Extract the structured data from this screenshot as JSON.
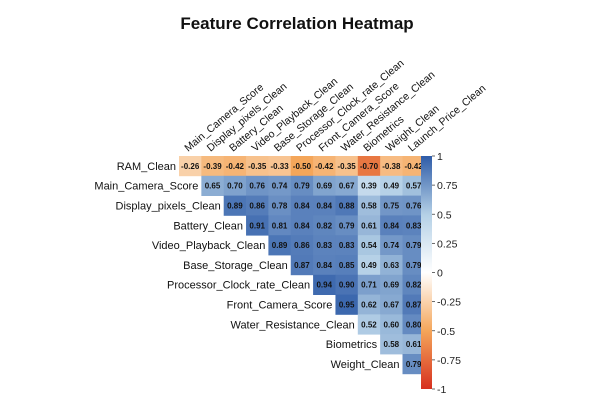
{
  "chart_data": {
    "type": "heatmap",
    "title": "Feature Correlation Heatmap",
    "shape": "upper-triangle",
    "rows": [
      "RAM_Clean",
      "Main_Camera_Score",
      "Display_pixels_Clean",
      "Battery_Clean",
      "Video_Playback_Clean",
      "Base_Storage_Clean",
      "Processor_Clock_rate_Clean",
      "Front_Camera_Score",
      "Water_Resistance_Clean",
      "Biometrics",
      "Weight_Clean"
    ],
    "columns": [
      "Main_Camera_Score",
      "Display_pixels_Clean",
      "Battery_Clean",
      "Video_Playback_Clean",
      "Base_Storage_Clean",
      "Processor_Clock_rate_Clean",
      "Front_Camera_Score",
      "Water_Resistance_Clean",
      "Biometrics",
      "Weight_Clean",
      "Launch_Price_Clean"
    ],
    "values": [
      [
        -0.26,
        -0.39,
        -0.42,
        -0.35,
        -0.33,
        -0.5,
        -0.42,
        -0.35,
        -0.7,
        -0.38,
        -0.42
      ],
      [
        0.65,
        0.7,
        0.76,
        0.74,
        0.79,
        0.69,
        0.67,
        0.39,
        0.49,
        0.57
      ],
      [
        0.89,
        0.86,
        0.78,
        0.84,
        0.84,
        0.88,
        0.58,
        0.75,
        0.76
      ],
      [
        0.91,
        0.81,
        0.84,
        0.82,
        0.79,
        0.61,
        0.84,
        0.83
      ],
      [
        0.89,
        0.86,
        0.83,
        0.83,
        0.54,
        0.74,
        0.79
      ],
      [
        0.87,
        0.84,
        0.85,
        0.49,
        0.63,
        0.79
      ],
      [
        0.94,
        0.9,
        0.71,
        0.69,
        0.82
      ],
      [
        0.95,
        0.62,
        0.67,
        0.87
      ],
      [
        0.52,
        0.6,
        0.8
      ],
      [
        0.58,
        0.61
      ],
      [
        0.79
      ]
    ],
    "color_scale": {
      "min": -1,
      "max": 1,
      "ticks": [
        "1",
        "0.75",
        "0.5",
        "0.25",
        "0",
        "-0.25",
        "-0.5",
        "-0.75",
        "-1"
      ],
      "colors": {
        "neg": "#d7301f",
        "negmid": "#f4a65a",
        "zero": "#ffffff",
        "posmid": "#b4d0e6",
        "pos": "#2f5ca8"
      }
    }
  }
}
